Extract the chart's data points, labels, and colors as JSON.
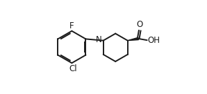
{
  "bg_color": "#ffffff",
  "line_color": "#1a1a1a",
  "bond_width": 1.4,
  "figsize": [
    2.98,
    1.36
  ],
  "dpi": 100,
  "xlim": [
    0.0,
    1.0
  ],
  "ylim": [
    0.05,
    0.95
  ]
}
